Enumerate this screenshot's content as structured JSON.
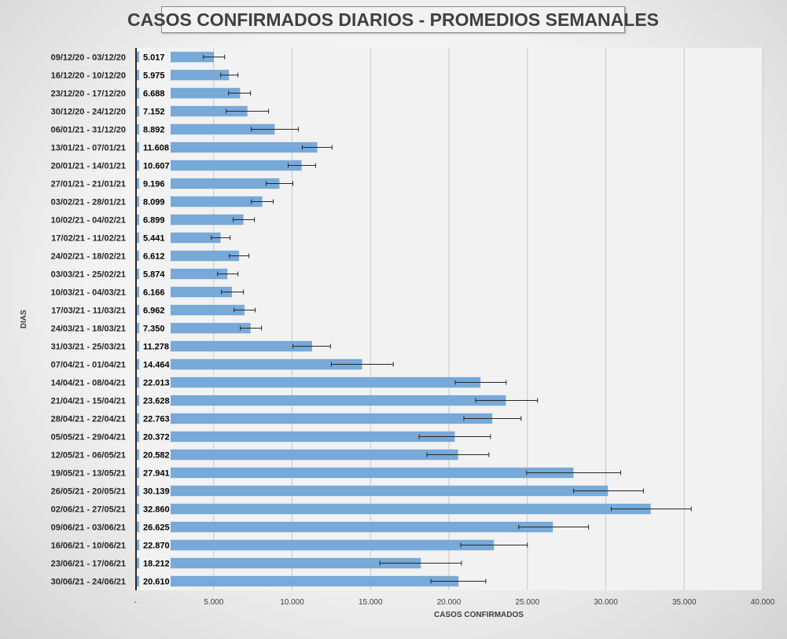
{
  "chart_data": {
    "type": "bar",
    "orientation": "horizontal",
    "title": "CASOS CONFIRMADOS DIARIOS - PROMEDIOS SEMANALES",
    "xlabel": "CASOS CONFIRMADOS",
    "ylabel": "DIAS",
    "xlim": [
      0,
      40000
    ],
    "x_ticks": [
      0,
      5000,
      10000,
      15000,
      20000,
      25000,
      30000,
      35000,
      40000
    ],
    "x_tick_labels": [
      "-",
      "5.000",
      "10.000",
      "15.000",
      "20.000",
      "25.000",
      "30.000",
      "35.000",
      "40.000"
    ],
    "grid": "vertical",
    "bar_color": "#77a9d9",
    "categories": [
      "09/12/20 - 03/12/20",
      "16/12/20 - 10/12/20",
      "23/12/20 - 17/12/20",
      "30/12/20 - 24/12/20",
      "06/01/21 - 31/12/20",
      "13/01/21 - 07/01/21",
      "20/01/21 - 14/01/21",
      "27/01/21 - 21/01/21",
      "03/02/21 - 28/01/21",
      "10/02/21 - 04/02/21",
      "17/02/21 - 11/02/21",
      "24/02/21 - 18/02/21",
      "03/03/21 - 25/02/21",
      "10/03/21 - 04/03/21",
      "17/03/21 - 11/03/21",
      "24/03/21 - 18/03/21",
      "31/03/21 - 25/03/21",
      "07/04/21 - 01/04/21",
      "14/04/21 - 08/04/21",
      "21/04/21 - 15/04/21",
      "28/04/21 - 22/04/21",
      "05/05/21 - 29/04/21",
      "12/05/21 - 06/05/21",
      "19/05/21 - 13/05/21",
      "26/05/21 - 20/05/21",
      "02/06/21 - 27/05/21",
      "09/06/21 - 03/06/21",
      "16/06/21 - 10/06/21",
      "23/06/21 - 17/06/21",
      "30/06/21 - 24/06/21"
    ],
    "values": [
      5017,
      5975,
      6688,
      7152,
      8892,
      11608,
      10607,
      9196,
      8099,
      6899,
      5441,
      6612,
      5874,
      6166,
      6962,
      7350,
      11278,
      14464,
      22013,
      23628,
      22763,
      20372,
      20582,
      27941,
      30139,
      32860,
      26625,
      22870,
      18212,
      20610
    ],
    "value_labels": [
      "5.017",
      "5.975",
      "6.688",
      "7.152",
      "8.892",
      "11.608",
      "10.607",
      "9.196",
      "8.099",
      "6.899",
      "5.441",
      "6.612",
      "5.874",
      "6.166",
      "6.962",
      "7.350",
      "11.278",
      "14.464",
      "22.013",
      "23.628",
      "22.763",
      "20.372",
      "20.582",
      "27.941",
      "30.139",
      "32.860",
      "26.625",
      "22.870",
      "18.212",
      "20.610"
    ],
    "error_low": [
      4350,
      5450,
      5950,
      5800,
      7400,
      10650,
      9750,
      8350,
      7400,
      6250,
      4850,
      6000,
      5250,
      5500,
      6300,
      6700,
      10050,
      12500,
      20400,
      21700,
      20950,
      18100,
      18600,
      24950,
      27950,
      30350,
      24450,
      20750,
      15600,
      18850
    ],
    "error_high": [
      5700,
      6550,
      7350,
      8500,
      10400,
      12550,
      11500,
      10050,
      8800,
      7600,
      6050,
      7250,
      6550,
      6900,
      7650,
      8050,
      12450,
      16450,
      23650,
      25650,
      24600,
      22650,
      22550,
      30950,
      32400,
      35450,
      28900,
      25000,
      20800,
      22350
    ]
  }
}
